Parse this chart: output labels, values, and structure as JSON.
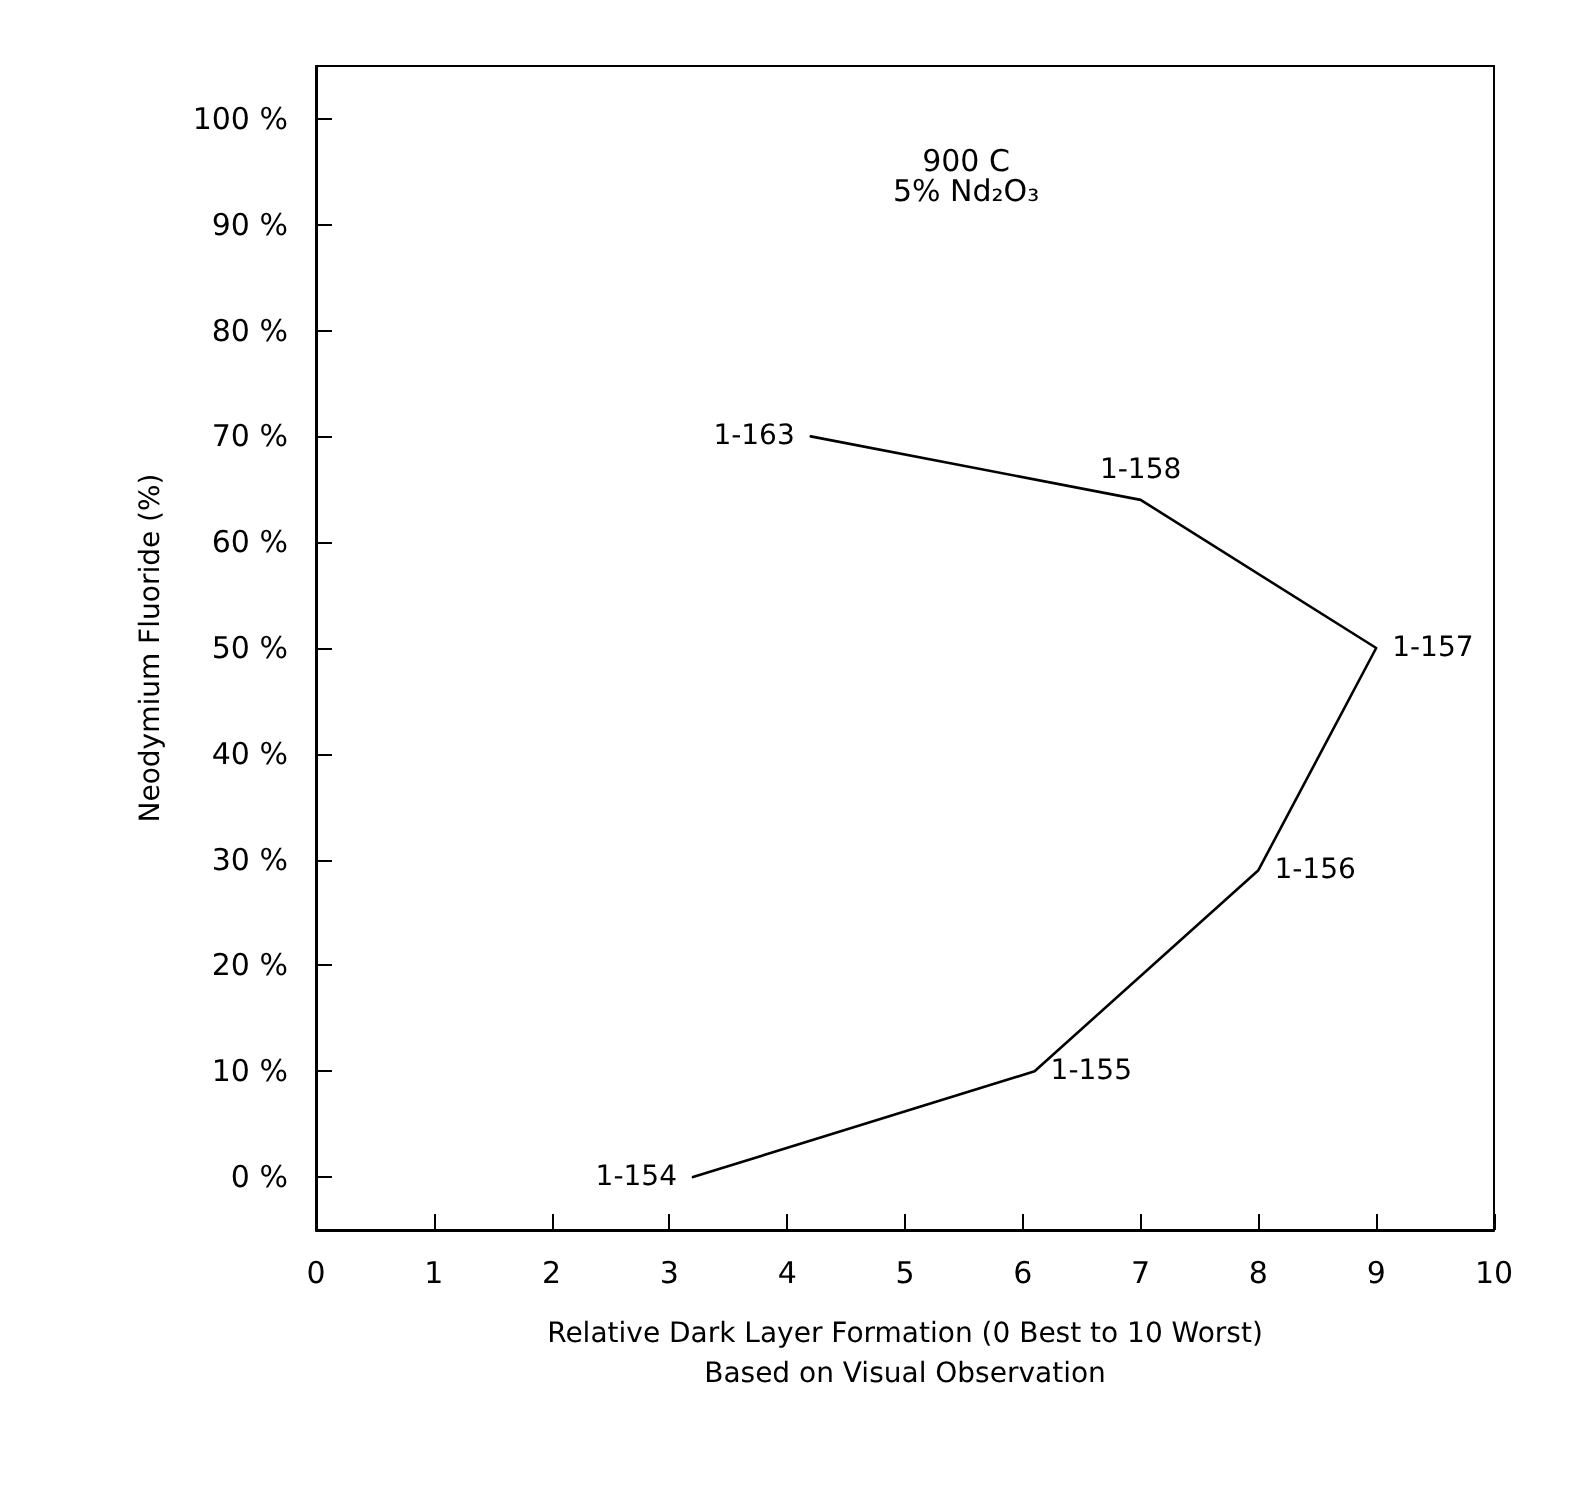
{
  "chart_data": {
    "type": "line",
    "title": "900 C",
    "subtitle": "5% Nd₂O₃",
    "xlabel": "Relative Dark Layer Formation (0 Best to 10 Worst)\nBased on Visual Observation",
    "ylabel": "Neodymium Fluoride (%)",
    "x": [
      3.2,
      6.1,
      8,
      9,
      7,
      4.2
    ],
    "values": [
      0,
      10,
      29,
      50,
      64,
      70
    ],
    "color": "#000000",
    "marker": "none",
    "line_style": "solid",
    "grid": false,
    "xlim": [
      0,
      10
    ],
    "xticks": [
      0,
      1,
      2,
      3,
      4,
      5,
      6,
      7,
      8,
      9,
      10
    ],
    "ylim": [
      -5,
      105
    ],
    "yticks": [
      {
        "value": 0,
        "label": "0 %"
      },
      {
        "value": 10,
        "label": "10 %"
      },
      {
        "value": 20,
        "label": "20 %"
      },
      {
        "value": 30,
        "label": "30 %"
      },
      {
        "value": 40,
        "label": "40 %"
      },
      {
        "value": 50,
        "label": "50 %"
      },
      {
        "value": 60,
        "label": "60 %"
      },
      {
        "value": 70,
        "label": "70 %"
      },
      {
        "value": 80,
        "label": "80 %"
      },
      {
        "value": 90,
        "label": "90 %"
      },
      {
        "value": 100,
        "label": "100 %"
      }
    ],
    "annotations": [
      {
        "text": "1-154",
        "x": 3.2,
        "y": 0
      },
      {
        "text": "1-155",
        "x": 6.1,
        "y": 10
      },
      {
        "text": "1-156",
        "x": 8,
        "y": 29
      },
      {
        "text": "1-157",
        "x": 9,
        "y": 50
      },
      {
        "text": "1-158",
        "x": 7,
        "y": 64
      },
      {
        "text": "1-163",
        "x": 4.2,
        "y": 70
      }
    ]
  }
}
